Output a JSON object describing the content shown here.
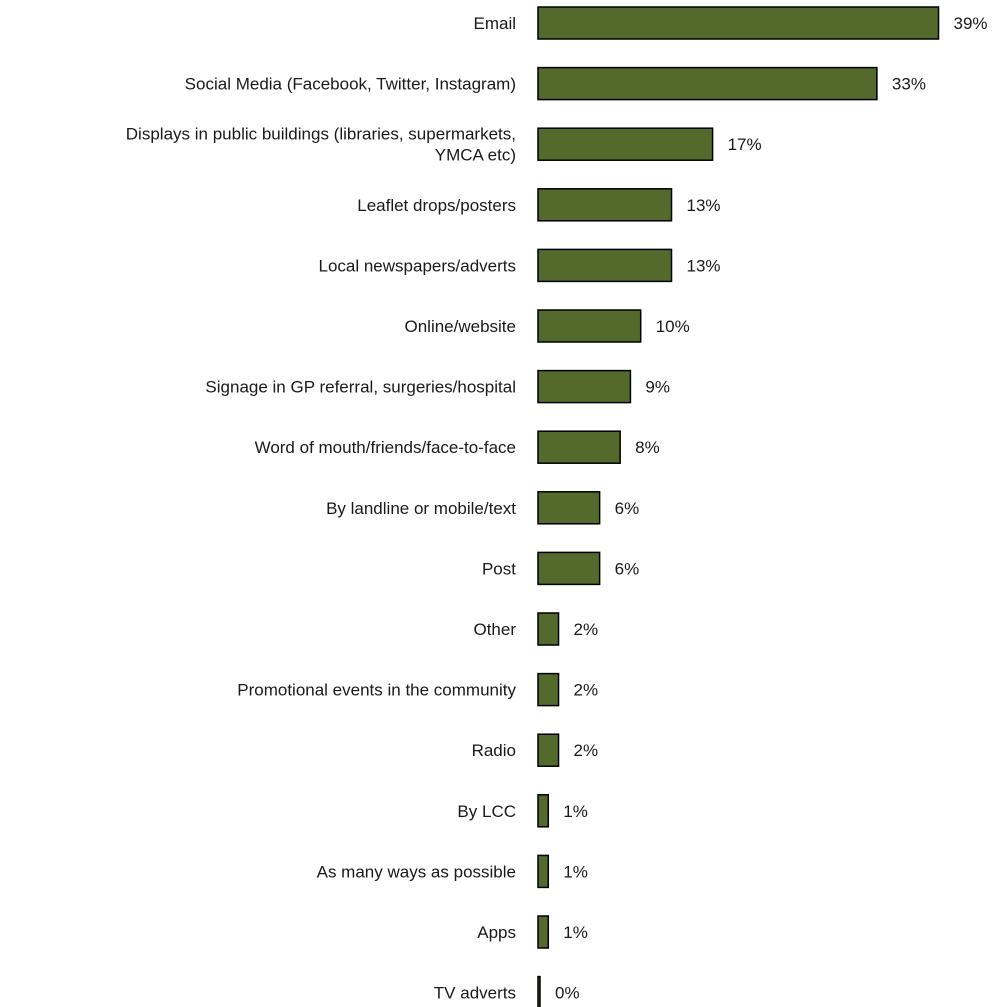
{
  "chart_data": {
    "type": "bar",
    "orientation": "horizontal",
    "categories": [
      [
        "Email"
      ],
      [
        "Social Media (Facebook, Twitter, Instagram)"
      ],
      [
        "Displays in public buildings (libraries, supermarkets,",
        "YMCA etc)"
      ],
      [
        "Leaflet drops/posters"
      ],
      [
        "Local newspapers/adverts"
      ],
      [
        "Online/website"
      ],
      [
        "Signage in GP referral, surgeries/hospital"
      ],
      [
        "Word of mouth/friends/face-to-face"
      ],
      [
        "By landline or mobile/text"
      ],
      [
        "Post"
      ],
      [
        "Other"
      ],
      [
        "Promotional events in the community"
      ],
      [
        "Radio"
      ],
      [
        "By LCC"
      ],
      [
        "As many ways as possible"
      ],
      [
        "Apps"
      ],
      [
        "TV adverts"
      ]
    ],
    "values": [
      39,
      33,
      17,
      13,
      13,
      10,
      9,
      8,
      6,
      6,
      2,
      2,
      2,
      1,
      1,
      1,
      0
    ],
    "value_labels": [
      "39%",
      "33%",
      "17%",
      "13%",
      "13%",
      "10%",
      "9%",
      "8%",
      "6%",
      "6%",
      "2%",
      "2%",
      "2%",
      "1%",
      "1%",
      "1%",
      "0%"
    ],
    "unit": "%",
    "bar_color": "#536a2c",
    "bar_outline_color": "#000000",
    "title": "",
    "xlabel": "",
    "ylabel": "",
    "grid": false,
    "legend": "none"
  }
}
